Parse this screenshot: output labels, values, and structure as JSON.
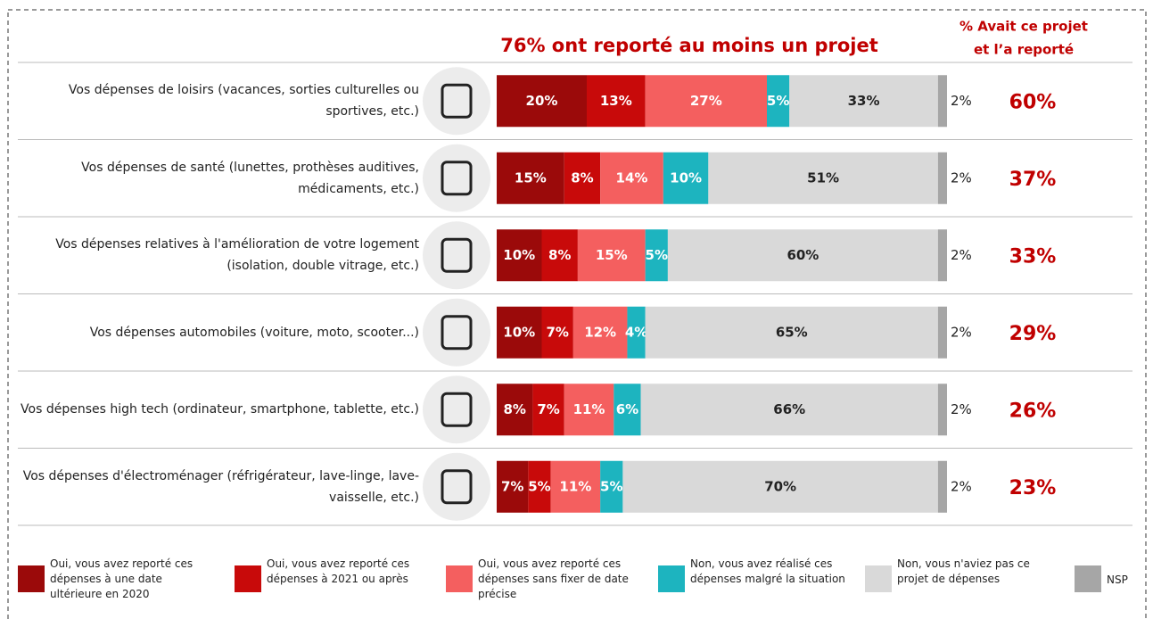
{
  "chart_data": {
    "type": "bar",
    "orientation": "horizontal",
    "stacked": true,
    "title": "76% ont reporté au moins un projet",
    "categories": [
      "Vos dépenses de loisirs (vacances, sorties culturelles ou sportives, etc.)",
      "Vos dépenses de santé (lunettes, prothèses auditives, médicaments, etc.)",
      "Vos dépenses relatives à l'amélioration de votre logement (isolation, double vitrage, etc.)",
      "Vos dépenses automobiles (voiture, moto, scooter...)",
      "Vos dépenses high tech (ordinateur, smartphone, tablette, etc.)",
      "Vos dépenses d'électroménager (réfrigérateur, lave-linge, lave-vaisselle, etc.)"
    ],
    "xlim": [
      0,
      100
    ],
    "series": [
      {
        "name": "Oui, vous avez reporté ces dépenses à une date ultérieure en 2020",
        "color": "#9b0a0a",
        "text_color": "#ffffff",
        "values": [
          20,
          15,
          10,
          10,
          8,
          7
        ],
        "value_labels": [
          "20%",
          "15%",
          "10%",
          "10%",
          "8%",
          "7%"
        ]
      },
      {
        "name": "Oui, vous avez reporté ces dépenses à 2021 ou après",
        "color": "#c80a0a",
        "text_color": "#ffffff",
        "values": [
          13,
          8,
          8,
          7,
          7,
          5
        ],
        "value_labels": [
          "13%",
          "8%",
          "8%",
          "7%",
          "7%",
          "5%"
        ]
      },
      {
        "name": "Oui, vous avez reporté ces dépenses sans fixer de date précise",
        "color": "#f45f5f",
        "text_color": "#ffffff",
        "values": [
          27,
          14,
          15,
          12,
          11,
          11
        ],
        "value_labels": [
          "27%",
          "14%",
          "15%",
          "12%",
          "11%",
          "11%"
        ]
      },
      {
        "name": "Non, vous avez réalisé ces dépenses malgré la situation",
        "color": "#1db4bf",
        "text_color": "#ffffff",
        "values": [
          5,
          10,
          5,
          4,
          6,
          5
        ],
        "value_labels": [
          "5%",
          "10%",
          "5%",
          "4%",
          "6%",
          "5%"
        ]
      },
      {
        "name": "Non, vous n'aviez pas ce projet de dépenses",
        "color": "#d9d9d9",
        "text_color": "#222222",
        "values": [
          33,
          51,
          60,
          65,
          66,
          70
        ],
        "value_labels": [
          "33%",
          "51%",
          "60%",
          "65%",
          "66%",
          "70%"
        ]
      },
      {
        "name": "NSP",
        "color": "#a6a6a6",
        "text_color": "#222222",
        "values": [
          2,
          2,
          2,
          2,
          2,
          2
        ],
        "value_labels": [
          "2%",
          "2%",
          "2%",
          "2%",
          "2%",
          "2%"
        ]
      }
    ],
    "side_column": {
      "title_lines": [
        "% Avait ce projet",
        "et l’a reporté"
      ],
      "color": "#c00000",
      "values": [
        60,
        37,
        33,
        29,
        26,
        23
      ],
      "value_labels": [
        "60%",
        "37%",
        "33%",
        "29%",
        "26%",
        "23%"
      ]
    }
  }
}
